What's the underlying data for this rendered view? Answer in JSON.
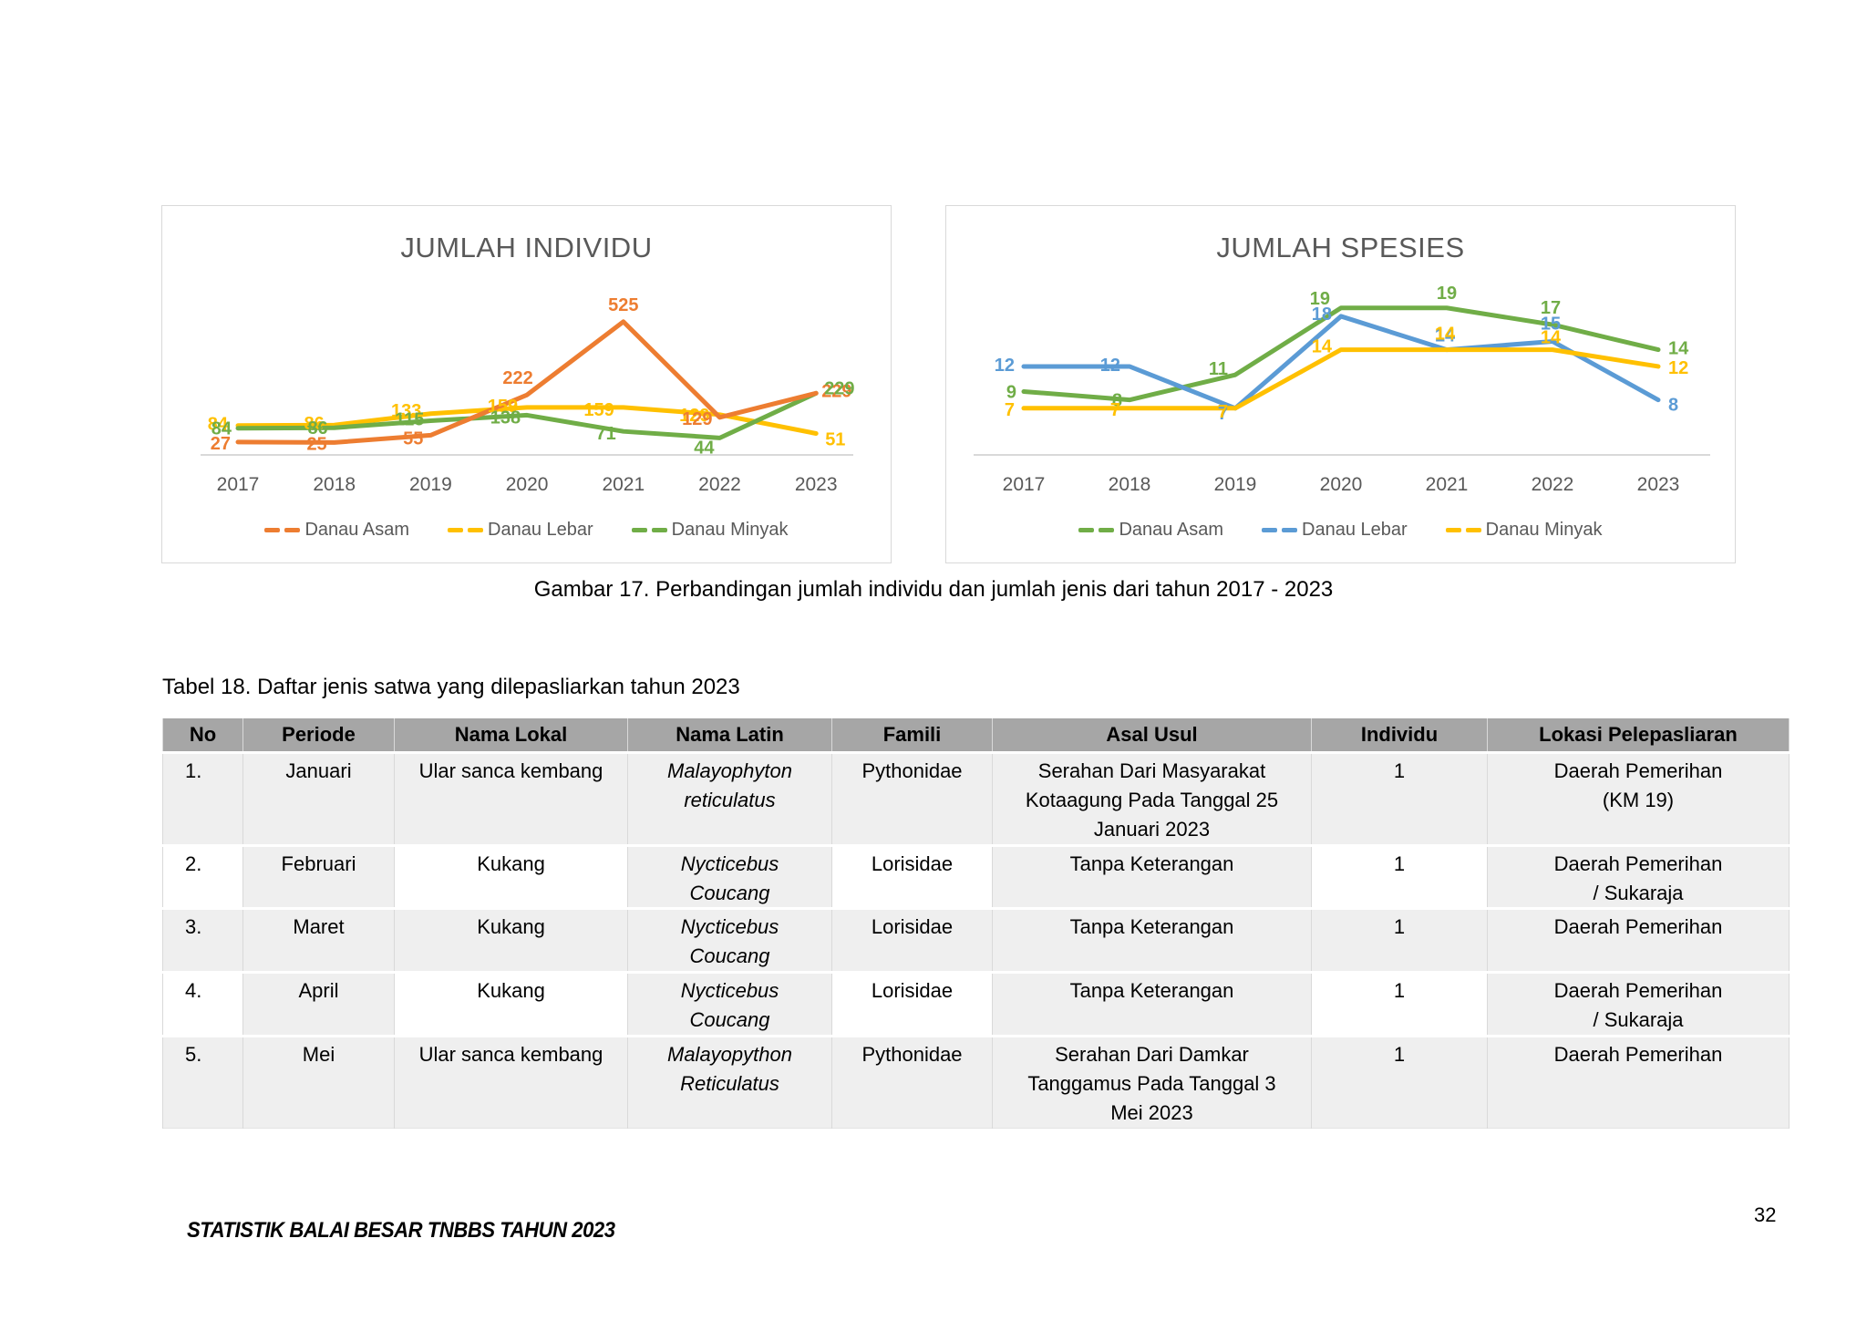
{
  "page": {
    "caption": "Gambar 17. Perbandingan jumlah individu dan jumlah jenis dari tahun 2017 - 2023",
    "table_title": "Tabel 18. Daftar jenis satwa yang dilepasliarkan tahun 2023",
    "footer": "STATISTIK BALAI BESAR TNBBS TAHUN 2023",
    "page_number": "32"
  },
  "colors": {
    "orange": "#ED7D31",
    "yellow": "#FFC000",
    "green": "#70AD47",
    "blue": "#5B9BD5",
    "axis_gray": "#d9d9d9",
    "text_gray": "#595959",
    "header_gray": "#a6a6a6"
  },
  "chart_data": [
    {
      "type": "line",
      "title": "JUMLAH INDIVIDU",
      "categories": [
        "2017",
        "2018",
        "2019",
        "2020",
        "2021",
        "2022",
        "2023"
      ],
      "series": [
        {
          "name": "Danau Asam",
          "color": "#ED7D31",
          "values": [
            27,
            25,
            55,
            222,
            525,
            129,
            229
          ]
        },
        {
          "name": "Danau Lebar",
          "color": "#FFC000",
          "values": [
            84,
            86,
            133,
            159,
            159,
            129,
            51
          ]
        },
        {
          "name": "Danau Minyak",
          "color": "#70AD47",
          "values": [
            84,
            86,
            115,
            138,
            71,
            44,
            229
          ]
        }
      ],
      "legend_position": "bottom",
      "grid": false,
      "data_labels": true,
      "ylim": [
        0,
        560
      ]
    },
    {
      "type": "line",
      "title": "JUMLAH SPESIES",
      "categories": [
        "2017",
        "2018",
        "2019",
        "2020",
        "2021",
        "2022",
        "2023"
      ],
      "series": [
        {
          "name": "Danau Asam",
          "color": "#70AD47",
          "values": [
            9,
            8,
            11,
            19,
            19,
            17,
            14
          ]
        },
        {
          "name": "Danau Lebar",
          "color": "#5B9BD5",
          "values": [
            12,
            12,
            7,
            18,
            14,
            15,
            8
          ]
        },
        {
          "name": "Danau Minyak",
          "color": "#FFC000",
          "values": [
            7,
            7,
            7,
            14,
            14,
            14,
            12
          ]
        }
      ],
      "legend_position": "bottom",
      "grid": false,
      "data_labels": true,
      "ylim": [
        0,
        22
      ]
    }
  ],
  "table": {
    "columns": [
      "No",
      "Periode",
      "Nama Lokal",
      "Nama Latin",
      "Famili",
      "Asal Usul",
      "Individu",
      "Lokasi Pelepasliaran"
    ],
    "rows": [
      [
        "1.",
        "Januari",
        "Ular sanca kembang",
        "Malayophyton\nreticulatus",
        "Pythonidae",
        "Serahan Dari Masyarakat\nKotaagung Pada Tanggal 25\nJanuari 2023",
        "1",
        "Daerah Pemerihan\n(KM 19)"
      ],
      [
        "2.",
        "Februari",
        "Kukang",
        "Nycticebus\nCoucang",
        "Lorisidae",
        "Tanpa Keterangan",
        "1",
        "Daerah Pemerihan\n/ Sukaraja"
      ],
      [
        "3.",
        "Maret",
        "Kukang",
        "Nycticebus\nCoucang",
        "Lorisidae",
        "Tanpa Keterangan",
        "1",
        "Daerah Pemerihan"
      ],
      [
        "4.",
        "April",
        "Kukang",
        "Nycticebus\nCoucang",
        "Lorisidae",
        "Tanpa Keterangan",
        "1",
        "Daerah Pemerihan\n/ Sukaraja"
      ],
      [
        "5.",
        "Mei",
        "Ular sanca kembang",
        "Malayopython\nReticulatus",
        "Pythonidae",
        "Serahan Dari Damkar\nTanggamus Pada Tanggal 3\nMei 2023",
        "1",
        "Daerah Pemerihan"
      ]
    ]
  }
}
